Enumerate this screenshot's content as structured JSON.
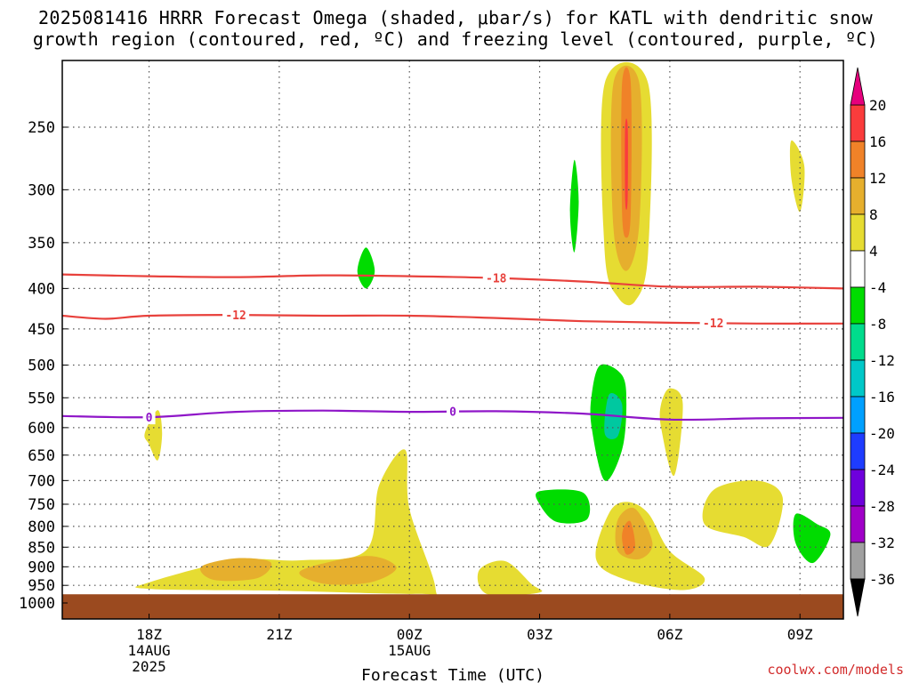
{
  "title_line1": "2025081416 HRRR Forecast Omega (shaded, μbar/s) for KATL with dendritic snow",
  "title_line2": "growth region (contoured, red, ºC) and freezing level (contoured, purple, ºC)",
  "credit": "coolwx.com/models",
  "chart_data": {
    "type": "contour",
    "title": "2025081416 HRRR Forecast Omega (shaded, μbar/s) for KATL with dendritic snow growth region (contoured, red, ºC) and freezing level (contoured, purple, ºC)",
    "xlabel": "Forecast Time (UTC)",
    "ylabel": "",
    "x_unit": "hours since 2025-08-14 16Z",
    "xlim": [
      0,
      18
    ],
    "ylim": [
      1000,
      200
    ],
    "y_scale": "log",
    "grid": true,
    "x_ticks": [
      {
        "x": 2,
        "label": "18Z",
        "sub": [
          "14AUG",
          "2025"
        ]
      },
      {
        "x": 5,
        "label": "21Z",
        "sub": []
      },
      {
        "x": 8,
        "label": "00Z",
        "sub": [
          "15AUG"
        ]
      },
      {
        "x": 11,
        "label": "03Z",
        "sub": []
      },
      {
        "x": 14,
        "label": "06Z",
        "sub": []
      },
      {
        "x": 17,
        "label": "09Z",
        "sub": []
      }
    ],
    "y_ticks": [
      250,
      300,
      350,
      400,
      450,
      500,
      550,
      600,
      650,
      700,
      750,
      800,
      850,
      900,
      950,
      1000
    ],
    "colorbar": {
      "levels": [
        -36,
        -32,
        -28,
        -24,
        -20,
        -16,
        -12,
        -8,
        -4,
        4,
        8,
        12,
        16,
        20
      ],
      "colors": [
        "#000000",
        "#a0a0a0",
        "#a000c8",
        "#6e00dc",
        "#1e3cff",
        "#00a0ff",
        "#00c8c8",
        "#00dc8c",
        "#00dc00",
        "#ffffff",
        "#e6dc32",
        "#e6af2d",
        "#f08228",
        "#fa3c3c",
        "#e6007d"
      ]
    },
    "ground": {
      "from_p": 975,
      "color": "#9b4a1f"
    },
    "series": [
      {
        "name": "-18",
        "color": "#e8413c",
        "kind": "temp_contour",
        "points": [
          [
            0,
            384
          ],
          [
            2,
            386
          ],
          [
            4,
            387
          ],
          [
            6,
            385
          ],
          [
            8,
            386
          ],
          [
            10,
            388
          ],
          [
            12,
            392
          ],
          [
            14,
            398
          ],
          [
            16,
            398
          ],
          [
            18,
            400
          ]
        ]
      },
      {
        "name": "-12",
        "color": "#e8413c",
        "kind": "temp_contour",
        "points": [
          [
            0,
            433
          ],
          [
            1,
            437
          ],
          [
            2,
            433
          ],
          [
            4,
            432
          ],
          [
            6,
            433
          ],
          [
            8,
            433
          ],
          [
            10,
            436
          ],
          [
            12,
            440
          ],
          [
            14,
            442
          ],
          [
            16,
            443
          ],
          [
            18,
            443
          ]
        ]
      },
      {
        "name": "0",
        "color": "#8f16c8",
        "kind": "freezing_level",
        "points": [
          [
            0,
            580
          ],
          [
            2,
            582
          ],
          [
            4,
            573
          ],
          [
            6,
            571
          ],
          [
            8,
            573
          ],
          [
            10,
            572
          ],
          [
            12,
            576
          ],
          [
            14,
            586
          ],
          [
            16,
            584
          ],
          [
            18,
            583
          ]
        ]
      }
    ],
    "contour_labels": [
      {
        "text": "-18",
        "x": 10.0,
        "p": 388,
        "series": "-18"
      },
      {
        "text": "-12",
        "x": 4.0,
        "p": 432,
        "series": "-12"
      },
      {
        "text": "-12",
        "x": 15.0,
        "p": 442,
        "series": "-12"
      },
      {
        "text": "0",
        "x": 2.0,
        "p": 582,
        "series": "0"
      },
      {
        "text": "0",
        "x": 9.0,
        "p": 572,
        "series": "0"
      }
    ],
    "regions": [
      {
        "level": "4-8",
        "color": "#e6dc32",
        "points": [
          [
            2.0,
            942
          ],
          [
            4.0,
            883
          ],
          [
            5.5,
            883
          ],
          [
            7.0,
            858
          ],
          [
            7.3,
            710
          ],
          [
            7.9,
            640
          ],
          [
            8.0,
            760
          ],
          [
            8.6,
            958
          ],
          [
            8.2,
            974
          ],
          [
            5.0,
            965
          ],
          [
            2.0,
            960
          ]
        ]
      },
      {
        "level": "8-12",
        "color": "#e6af2d",
        "points": [
          [
            3.2,
            900
          ],
          [
            4.0,
            878
          ],
          [
            4.8,
            888
          ],
          [
            4.5,
            930
          ],
          [
            3.5,
            935
          ]
        ]
      },
      {
        "level": "8-12",
        "color": "#e6af2d",
        "points": [
          [
            5.5,
            910
          ],
          [
            7.0,
            872
          ],
          [
            7.7,
            902
          ],
          [
            7.1,
            942
          ],
          [
            6.0,
            945
          ]
        ]
      },
      {
        "level": "4-8",
        "color": "#e6dc32",
        "points": [
          [
            1.9,
            610
          ],
          [
            2.2,
            570
          ],
          [
            2.3,
            610
          ],
          [
            2.2,
            660
          ],
          [
            2.0,
            630
          ]
        ]
      },
      {
        "level": "4-8",
        "color": "#e6dc32",
        "points": [
          [
            9.6,
            910
          ],
          [
            10.2,
            885
          ],
          [
            10.8,
            945
          ],
          [
            11.0,
            970
          ],
          [
            9.8,
            975
          ]
        ]
      },
      {
        "level": "4-8",
        "color": "#e6dc32",
        "points": [
          [
            12.5,
            220
          ],
          [
            13.5,
            220
          ],
          [
            13.5,
            360
          ],
          [
            13.2,
            415
          ],
          [
            12.8,
            410
          ],
          [
            12.5,
            360
          ]
        ]
      },
      {
        "level": "8-12",
        "color": "#e6af2d",
        "points": [
          [
            12.7,
            220
          ],
          [
            13.3,
            220
          ],
          [
            13.3,
            330
          ],
          [
            13.0,
            380
          ],
          [
            12.7,
            335
          ]
        ]
      },
      {
        "level": "12-16",
        "color": "#f08228",
        "points": [
          [
            12.9,
            220
          ],
          [
            13.1,
            220
          ],
          [
            13.1,
            320
          ],
          [
            13.0,
            345
          ],
          [
            12.9,
            320
          ]
        ]
      },
      {
        "level": "16-20",
        "color": "#fa3c3c",
        "points": [
          [
            12.97,
            250
          ],
          [
            13.03,
            250
          ],
          [
            13.03,
            305
          ],
          [
            13.0,
            318
          ],
          [
            12.97,
            305
          ]
        ]
      },
      {
        "level": "4-8",
        "color": "#e6dc32",
        "points": [
          [
            14.0,
            535
          ],
          [
            14.3,
            560
          ],
          [
            14.1,
            690
          ],
          [
            13.8,
            600
          ],
          [
            13.8,
            560
          ]
        ]
      },
      {
        "level": "4-8",
        "color": "#e6dc32",
        "points": [
          [
            12.6,
            770
          ],
          [
            13.0,
            745
          ],
          [
            13.5,
            770
          ],
          [
            14.0,
            860
          ],
          [
            14.8,
            930
          ],
          [
            14.3,
            963
          ],
          [
            13.0,
            935
          ],
          [
            12.3,
            880
          ]
        ]
      },
      {
        "level": "8-12",
        "color": "#e6af2d",
        "points": [
          [
            12.8,
            785
          ],
          [
            13.2,
            760
          ],
          [
            13.6,
            840
          ],
          [
            13.3,
            880
          ],
          [
            12.8,
            860
          ]
        ]
      },
      {
        "level": "12-16",
        "color": "#f08228",
        "points": [
          [
            12.95,
            800
          ],
          [
            13.1,
            790
          ],
          [
            13.2,
            850
          ],
          [
            13.0,
            868
          ],
          [
            12.9,
            830
          ]
        ]
      },
      {
        "level": "4-8",
        "color": "#e6dc32",
        "points": [
          [
            15.0,
            720
          ],
          [
            16.0,
            700
          ],
          [
            16.6,
            735
          ],
          [
            16.3,
            845
          ],
          [
            15.7,
            825
          ],
          [
            14.8,
            795
          ]
        ]
      },
      {
        "level": "4-8",
        "color": "#e6dc32",
        "points": [
          [
            16.8,
            260
          ],
          [
            17.1,
            280
          ],
          [
            17.0,
            320
          ],
          [
            16.8,
            290
          ]
        ]
      },
      {
        "level": "-8--4",
        "color": "#00dc00",
        "points": [
          [
            7.0,
            355
          ],
          [
            7.2,
            380
          ],
          [
            7.0,
            400
          ],
          [
            6.8,
            380
          ]
        ]
      },
      {
        "level": "-8--4",
        "color": "#00dc00",
        "points": [
          [
            11.8,
            275
          ],
          [
            11.9,
            310
          ],
          [
            11.8,
            360
          ],
          [
            11.7,
            320
          ]
        ]
      },
      {
        "level": "-8--4",
        "color": "#00dc00",
        "points": [
          [
            12.4,
            500
          ],
          [
            12.9,
            515
          ],
          [
            13.0,
            560
          ],
          [
            12.9,
            640
          ],
          [
            12.5,
            700
          ],
          [
            12.2,
            600
          ],
          [
            12.2,
            545
          ]
        ]
      },
      {
        "level": "-12--8",
        "color": "#00c8a0",
        "points": [
          [
            12.6,
            545
          ],
          [
            12.9,
            560
          ],
          [
            12.8,
            615
          ],
          [
            12.5,
            610
          ]
        ]
      },
      {
        "level": "-8--4",
        "color": "#00dc00",
        "points": [
          [
            11.0,
            722
          ],
          [
            12.0,
            725
          ],
          [
            12.1,
            783
          ],
          [
            11.4,
            790
          ],
          [
            11.0,
            750
          ]
        ]
      },
      {
        "level": "-8--4",
        "color": "#00dc00",
        "points": [
          [
            16.9,
            772
          ],
          [
            17.4,
            795
          ],
          [
            17.7,
            820
          ],
          [
            17.3,
            890
          ],
          [
            16.9,
            840
          ]
        ]
      }
    ]
  }
}
